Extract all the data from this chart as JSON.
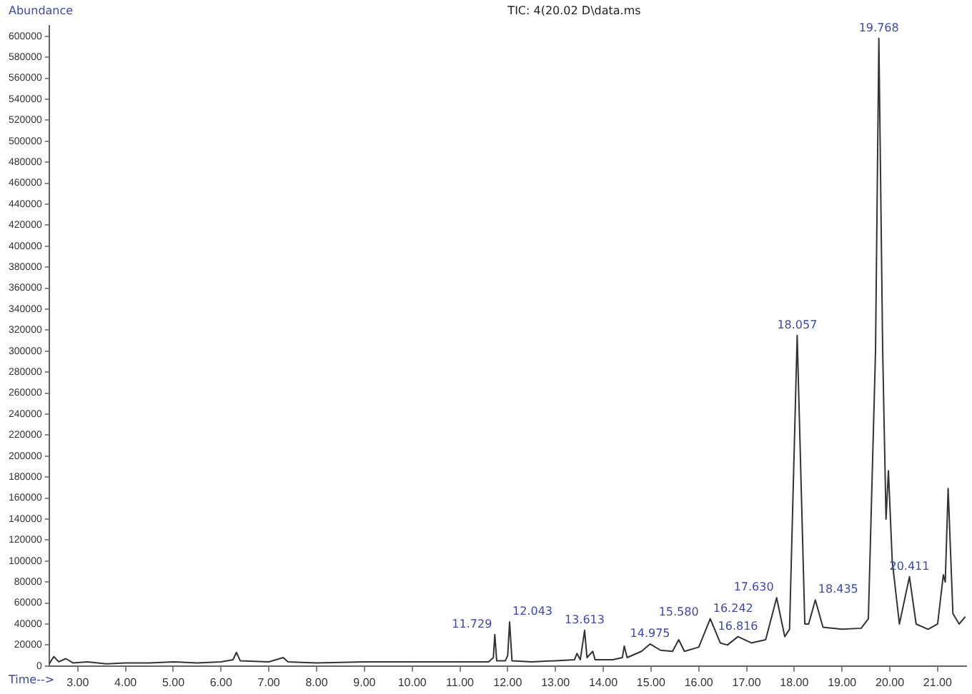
{
  "chart_data": {
    "type": "line",
    "title": "TIC: 4(20.02 D\\data.ms",
    "xlabel": "Time-->",
    "ylabel": "Abundance",
    "x": [
      2.4,
      2.5,
      2.6,
      2.75,
      2.9,
      3.2,
      3.6,
      4.0,
      4.5,
      5.0,
      5.5,
      6.0,
      6.25,
      6.32,
      6.4,
      7.0,
      7.3,
      7.4,
      8.0,
      9.0,
      10.0,
      11.0,
      11.6,
      11.7,
      11.73,
      11.77,
      11.95,
      12.0,
      12.04,
      12.09,
      12.5,
      13.0,
      13.4,
      13.45,
      13.52,
      13.61,
      13.66,
      13.78,
      13.83,
      14.2,
      14.4,
      14.44,
      14.5,
      14.8,
      14.98,
      15.2,
      15.45,
      15.58,
      15.7,
      16.0,
      16.24,
      16.45,
      16.6,
      16.82,
      17.1,
      17.4,
      17.63,
      17.8,
      17.9,
      18.06,
      18.22,
      18.3,
      18.44,
      18.6,
      19.0,
      19.4,
      19.55,
      19.7,
      19.77,
      19.85,
      19.92,
      19.97,
      20.05,
      20.2,
      20.41,
      20.55,
      20.8,
      21.0,
      21.12,
      21.16,
      21.22,
      21.32,
      21.45,
      21.58
    ],
    "series": [
      {
        "color": "#333333",
        "values": [
          2000,
          9000,
          4000,
          7000,
          3000,
          4000,
          2000,
          3000,
          3000,
          4000,
          3000,
          4000,
          6000,
          13000,
          5000,
          4000,
          8000,
          4000,
          3000,
          4000,
          4000,
          4000,
          4000,
          8000,
          30000,
          5000,
          5000,
          10000,
          42000,
          5000,
          4000,
          5000,
          6000,
          12000,
          6000,
          34000,
          8000,
          14000,
          6000,
          6000,
          8000,
          19000,
          8000,
          14000,
          21000,
          15000,
          14000,
          25000,
          14000,
          18000,
          45000,
          22000,
          20000,
          28000,
          22000,
          25000,
          65000,
          28000,
          35000,
          315000,
          40000,
          40000,
          63000,
          37000,
          35000,
          36000,
          45000,
          300000,
          598000,
          300000,
          140000,
          186000,
          100000,
          40000,
          85000,
          40000,
          35000,
          40000,
          87000,
          80000,
          169000,
          50000,
          40000,
          47000
        ]
      }
    ],
    "xlim": [
      2.4,
      21.6
    ],
    "xticks": [
      {
        "value": 3,
        "label": "3.00"
      },
      {
        "value": 4,
        "label": "4.00"
      },
      {
        "value": 5,
        "label": "5.00"
      },
      {
        "value": 6,
        "label": "6.00"
      },
      {
        "value": 7,
        "label": "7.00"
      },
      {
        "value": 8,
        "label": "8.00"
      },
      {
        "value": 9,
        "label": "9.00"
      },
      {
        "value": 10,
        "label": "10.00"
      },
      {
        "value": 11,
        "label": "11.00"
      },
      {
        "value": 12,
        "label": "12.00"
      },
      {
        "value": 13,
        "label": "13.00"
      },
      {
        "value": 14,
        "label": "14.00"
      },
      {
        "value": 15,
        "label": "15.00"
      },
      {
        "value": 16,
        "label": "16.00"
      },
      {
        "value": 17,
        "label": "17.00"
      },
      {
        "value": 18,
        "label": "18.00"
      },
      {
        "value": 19,
        "label": "19.00"
      },
      {
        "value": 20,
        "label": "20.00"
      },
      {
        "value": 21,
        "label": "21.00"
      }
    ],
    "ylim": [
      0,
      610000
    ],
    "yticks": [
      0,
      20000,
      40000,
      60000,
      80000,
      100000,
      120000,
      140000,
      160000,
      180000,
      200000,
      220000,
      240000,
      260000,
      280000,
      300000,
      320000,
      340000,
      360000,
      380000,
      400000,
      420000,
      440000,
      460000,
      480000,
      500000,
      520000,
      540000,
      560000,
      580000,
      600000
    ],
    "annotations": [
      {
        "text": "11.729",
        "x": 11.73,
        "y": 30000
      },
      {
        "text": "12.043",
        "x": 12.04,
        "y": 42000
      },
      {
        "text": "13.613",
        "x": 13.61,
        "y": 34000
      },
      {
        "text": "14.975",
        "x": 14.98,
        "y": 21000
      },
      {
        "text": "15.580",
        "x": 15.58,
        "y": 25000
      },
      {
        "text": "16.242",
        "x": 16.24,
        "y": 45000
      },
      {
        "text": "16.816",
        "x": 16.82,
        "y": 28000
      },
      {
        "text": "17.630",
        "x": 17.63,
        "y": 65000
      },
      {
        "text": "18.057",
        "x": 18.06,
        "y": 315000
      },
      {
        "text": "18.435",
        "x": 18.44,
        "y": 63000
      },
      {
        "text": "19.768",
        "x": 19.77,
        "y": 598000
      },
      {
        "text": "20.411",
        "x": 20.41,
        "y": 85000
      }
    ],
    "grid": false,
    "legend": false,
    "marker": "none",
    "line_style": "solid"
  }
}
